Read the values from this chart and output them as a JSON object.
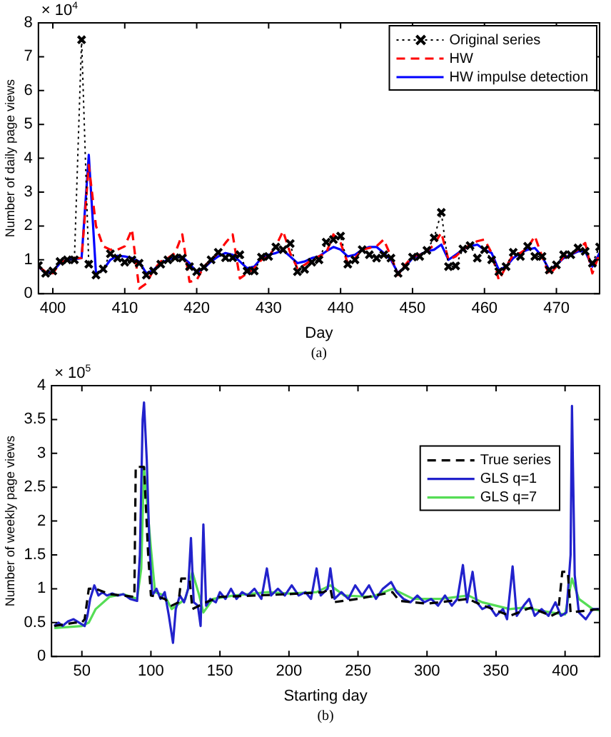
{
  "chart_data": [
    {
      "type": "line",
      "xlabel": "Day",
      "ylabel": "Number of daily page views",
      "annotations": [
        "× 10$^{4}$",
        "(a)"
      ],
      "xlim": [
        398,
        476
      ],
      "xticks": [
        400,
        410,
        420,
        430,
        440,
        450,
        460,
        470
      ],
      "ylim": [
        0,
        8
      ],
      "yticks": [
        0,
        1,
        2,
        3,
        4,
        5,
        6,
        7,
        8
      ],
      "grid": false,
      "legend": "top right",
      "x": [
        398,
        399,
        400,
        401,
        402,
        403,
        404,
        405,
        406,
        407,
        408,
        409,
        410,
        411,
        412,
        413,
        414,
        415,
        416,
        417,
        418,
        419,
        420,
        421,
        422,
        423,
        424,
        425,
        426,
        427,
        428,
        429,
        430,
        431,
        432,
        433,
        434,
        435,
        436,
        437,
        438,
        439,
        440,
        441,
        442,
        443,
        444,
        445,
        446,
        447,
        448,
        449,
        450,
        451,
        452,
        453,
        454,
        455,
        456,
        457,
        458,
        459,
        460,
        461,
        462,
        463,
        464,
        465,
        466,
        467,
        468,
        469,
        470,
        471,
        472,
        473,
        474,
        475,
        476
      ],
      "series": [
        {
          "name": "Original series",
          "color": "#000000",
          "marker": "cross",
          "line_style": "dotted",
          "values": [
            0.83,
            0.6,
            0.67,
            0.95,
            1.0,
            1.0,
            7.5,
            0.87,
            0.55,
            0.73,
            1.18,
            1.05,
            0.93,
            1.0,
            0.9,
            0.55,
            0.67,
            0.87,
            1.0,
            1.06,
            1.05,
            0.8,
            0.65,
            0.78,
            1.0,
            1.22,
            1.06,
            1.06,
            1.15,
            0.67,
            0.67,
            1.08,
            1.1,
            1.38,
            1.3,
            1.48,
            0.65,
            0.72,
            0.93,
            1.0,
            1.52,
            1.6,
            1.7,
            0.87,
            1.0,
            1.3,
            1.15,
            1.05,
            1.15,
            1.05,
            0.6,
            0.8,
            1.08,
            1.1,
            1.28,
            1.65,
            2.4,
            0.8,
            0.82,
            1.32,
            1.42,
            1.05,
            1.3,
            1.0,
            0.65,
            0.8,
            1.22,
            1.1,
            1.4,
            1.1,
            1.1,
            0.7,
            0.85,
            1.15,
            1.15,
            1.35,
            1.25,
            0.9,
            1.38
          ]
        },
        {
          "name": "HW",
          "color": "#ff0000",
          "line_style": "dashed",
          "values": [
            0.8,
            0.65,
            0.6,
            0.9,
            1.0,
            1.05,
            1.05,
            3.8,
            2.0,
            1.4,
            1.3,
            1.3,
            1.4,
            1.9,
            0.15,
            0.3,
            0.7,
            0.95,
            1.05,
            1.2,
            1.75,
            0.35,
            0.4,
            0.8,
            1.0,
            1.2,
            1.5,
            1.75,
            0.45,
            0.6,
            0.75,
            1.0,
            1.1,
            1.4,
            1.85,
            1.2,
            0.75,
            0.85,
            1.0,
            1.1,
            1.2,
            1.75,
            1.5,
            0.9,
            1.05,
            1.3,
            1.35,
            1.4,
            1.6,
            1.1,
            0.55,
            0.85,
            1.1,
            1.15,
            1.25,
            1.45,
            1.8,
            1.0,
            1.1,
            1.3,
            1.45,
            1.55,
            1.6,
            1.2,
            0.4,
            0.8,
            1.15,
            1.2,
            1.35,
            1.7,
            1.1,
            0.55,
            0.8,
            1.1,
            1.15,
            1.3,
            1.5,
            0.6,
            1.2
          ]
        },
        {
          "name": "HW impulse detection",
          "color": "#0000ff",
          "line_style": "solid",
          "values": [
            0.8,
            0.6,
            0.65,
            0.9,
            1.0,
            1.02,
            1.05,
            4.1,
            0.6,
            0.7,
            1.0,
            1.12,
            1.1,
            1.05,
            0.95,
            0.6,
            0.7,
            0.9,
            1.0,
            1.08,
            1.08,
            0.9,
            0.62,
            0.75,
            0.95,
            1.1,
            1.2,
            1.15,
            0.95,
            0.75,
            0.8,
            1.05,
            1.15,
            1.2,
            1.28,
            1.1,
            0.9,
            0.95,
            1.05,
            1.1,
            1.25,
            1.38,
            1.3,
            1.1,
            1.15,
            1.3,
            1.38,
            1.38,
            1.2,
            1.0,
            0.6,
            0.8,
            1.05,
            1.15,
            1.25,
            1.3,
            1.45,
            1.0,
            1.15,
            1.3,
            1.4,
            1.45,
            1.3,
            1.2,
            0.7,
            0.8,
            1.05,
            1.2,
            1.3,
            1.35,
            1.1,
            0.7,
            0.85,
            1.05,
            1.15,
            1.25,
            1.25,
            0.8,
            1.2
          ]
        }
      ]
    },
    {
      "type": "line",
      "xlabel": "Starting day",
      "ylabel": "Number of weekly page views",
      "annotations": [
        "× 10$^{5}$",
        "(b)"
      ],
      "xlim": [
        28,
        425
      ],
      "xticks": [
        50,
        100,
        150,
        200,
        250,
        300,
        350,
        400
      ],
      "ylim": [
        0,
        4
      ],
      "yticks": [
        0,
        0.5,
        1,
        1.5,
        2,
        2.5,
        3,
        3.5,
        4
      ],
      "grid": false,
      "legend": "right",
      "series": [
        {
          "name": "True series",
          "color": "#000000",
          "line_style": "dashed",
          "x": [
            30,
            45,
            50,
            52,
            55,
            60,
            70,
            80,
            88,
            89,
            95,
            98,
            100,
            105,
            110,
            115,
            120,
            122,
            128,
            130,
            140,
            150,
            175,
            200,
            225,
            230,
            232,
            250,
            275,
            280,
            300,
            330,
            335,
            350,
            360,
            375,
            390,
            395,
            398,
            402,
            404,
            425
          ],
          "values": [
            0.45,
            0.5,
            0.5,
            0.55,
            1.0,
            1.0,
            0.92,
            0.9,
            0.88,
            2.8,
            2.8,
            1.5,
            0.9,
            0.88,
            0.85,
            0.75,
            0.8,
            1.15,
            1.15,
            0.7,
            0.8,
            0.88,
            0.9,
            0.92,
            0.95,
            1.0,
            0.8,
            0.85,
            0.95,
            0.82,
            0.78,
            0.85,
            0.8,
            0.68,
            0.6,
            0.72,
            0.6,
            0.65,
            1.25,
            1.25,
            0.65,
            0.7
          ]
        },
        {
          "name": "GLS q=1",
          "color": "#2222cc",
          "line_style": "solid",
          "x": [
            30,
            33,
            36,
            40,
            44,
            48,
            52,
            54,
            56,
            59,
            62,
            65,
            68,
            72,
            76,
            80,
            85,
            90,
            92,
            94,
            95,
            97,
            99,
            101,
            104,
            107,
            110,
            113,
            116,
            118,
            121,
            124,
            127,
            129,
            131,
            134,
            136,
            138,
            140,
            143,
            147,
            150,
            154,
            158,
            162,
            166,
            170,
            175,
            180,
            184,
            187,
            192,
            197,
            202,
            207,
            212,
            216,
            220,
            223,
            228,
            230,
            233,
            238,
            243,
            248,
            253,
            258,
            263,
            268,
            274,
            278,
            283,
            288,
            293,
            298,
            303,
            308,
            313,
            318,
            322,
            326,
            329,
            333,
            336,
            340,
            345,
            350,
            355,
            358,
            362,
            365,
            370,
            374,
            378,
            383,
            388,
            393,
            397,
            401,
            404,
            405,
            407,
            410,
            415,
            420,
            425
          ],
          "values": [
            0.45,
            0.5,
            0.45,
            0.52,
            0.55,
            0.5,
            0.45,
            0.6,
            0.85,
            1.05,
            0.9,
            0.95,
            0.9,
            0.93,
            0.9,
            0.92,
            0.85,
            0.82,
            1.5,
            3.5,
            3.75,
            2.9,
            1.6,
            0.9,
            1.0,
            0.85,
            0.95,
            0.6,
            0.2,
            0.7,
            0.9,
            0.8,
            1.0,
            1.75,
            0.8,
            0.75,
            0.45,
            1.95,
            0.75,
            0.85,
            0.8,
            0.95,
            0.85,
            1.0,
            0.85,
            0.95,
            0.9,
            1.0,
            0.85,
            1.3,
            0.9,
            1.0,
            0.9,
            1.05,
            0.9,
            0.95,
            0.85,
            1.3,
            0.9,
            1.0,
            1.3,
            0.85,
            0.95,
            0.85,
            1.05,
            0.9,
            1.05,
            0.85,
            1.0,
            1.1,
            0.95,
            0.85,
            0.8,
            0.9,
            0.8,
            0.85,
            0.75,
            0.9,
            0.75,
            0.85,
            1.35,
            0.8,
            1.25,
            0.8,
            0.7,
            0.75,
            0.6,
            0.7,
            0.55,
            1.33,
            0.6,
            0.75,
            0.85,
            0.6,
            0.7,
            0.6,
            0.8,
            0.6,
            0.65,
            1.5,
            3.7,
            1.2,
            0.65,
            0.55,
            0.7,
            0.7
          ]
        },
        {
          "name": "GLS q=7",
          "color": "#55dd55",
          "line_style": "solid",
          "x": [
            30,
            50,
            55,
            60,
            70,
            80,
            90,
            93,
            95,
            97,
            100,
            103,
            110,
            115,
            125,
            130,
            135,
            138,
            145,
            160,
            185,
            200,
            220,
            230,
            240,
            260,
            275,
            290,
            310,
            330,
            340,
            360,
            370,
            390,
            400,
            405,
            410,
            420,
            425
          ],
          "values": [
            0.42,
            0.45,
            0.5,
            0.7,
            0.88,
            0.92,
            0.85,
            1.3,
            2.8,
            2.3,
            1.6,
            0.95,
            0.9,
            0.7,
            0.85,
            1.25,
            0.9,
            0.65,
            0.85,
            0.9,
            0.95,
            0.93,
            0.95,
            1.05,
            0.9,
            0.88,
            1.0,
            0.85,
            0.85,
            0.9,
            0.8,
            0.7,
            0.72,
            0.65,
            0.62,
            1.15,
            0.85,
            0.7,
            0.68
          ]
        }
      ]
    }
  ]
}
